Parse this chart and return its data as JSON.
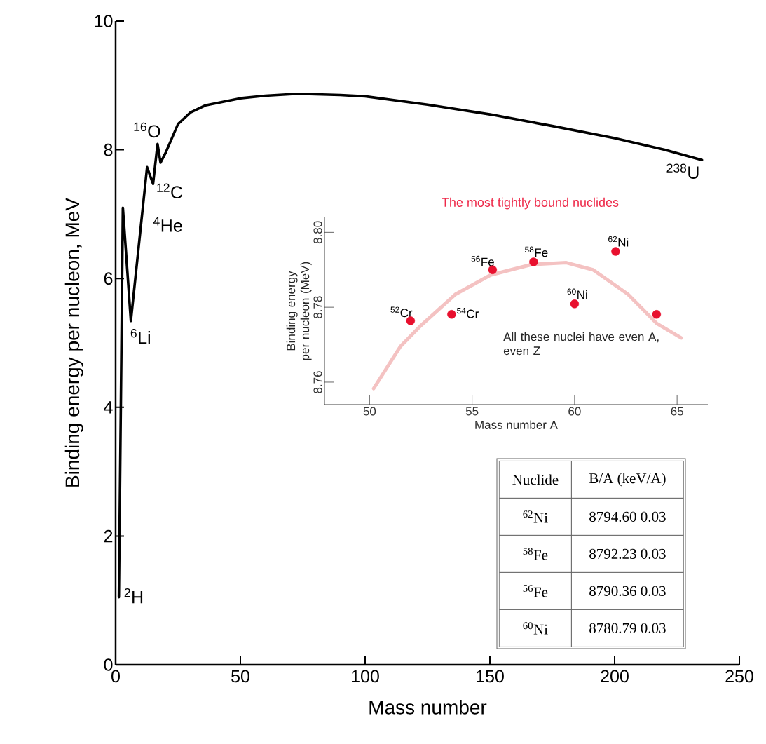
{
  "chart_data": [
    {
      "type": "line",
      "xlabel": "Mass number",
      "ylabel": "Binding energy per nucleon,   MeV",
      "color": "#000000",
      "x": [
        1.3,
        2.9,
        6.1,
        12.6,
        15,
        16.8,
        18,
        20,
        25,
        30,
        36,
        50,
        60,
        73,
        90,
        100,
        125,
        150,
        175,
        200,
        220,
        235
      ],
      "values": [
        1.05,
        7.1,
        5.34,
        7.73,
        7.47,
        8.09,
        7.8,
        7.95,
        8.4,
        8.58,
        8.69,
        8.8,
        8.84,
        8.87,
        8.85,
        8.83,
        8.7,
        8.55,
        8.37,
        8.18,
        8.0,
        7.84
      ],
      "xlim": [
        0,
        250
      ],
      "ylim": [
        0,
        10
      ],
      "xticks": [
        0,
        50,
        100,
        150,
        200,
        250
      ],
      "yticks": [
        0,
        2,
        4,
        6,
        8,
        10
      ],
      "annotations": [
        {
          "text": "$^{2}$H",
          "x": 1.3,
          "y": 1.05
        },
        {
          "text": "$^{4}$He",
          "x": 2.9,
          "y": 7.1
        },
        {
          "text": "$^{6}$Li",
          "x": 6.1,
          "y": 5.34
        },
        {
          "text": "$^{12}$C",
          "x": 12.6,
          "y": 7.73
        },
        {
          "text": "$^{16}$O",
          "x": 16.8,
          "y": 8.09
        },
        {
          "text": "$^{238}$U",
          "x": 235,
          "y": 7.84
        }
      ]
    },
    {
      "type": "scatter",
      "title": "The most tightly bound nuclides",
      "xlabel": "Mass number A",
      "ylabel": "Binding energy per nucleon (MeV)",
      "x": [
        52,
        54,
        56,
        58,
        60,
        62,
        64
      ],
      "series": [
        {
          "type": "scatter",
          "marker": "circle",
          "color": "#e8102e",
          "values": [
            8.7764,
            8.7781,
            8.79,
            8.7921,
            8.7809,
            8.7949,
            8.7781
          ]
        },
        {
          "type": "line",
          "color": "#f4c2c2",
          "x": [
            50.2,
            51.5,
            52.5,
            54.2,
            55.9,
            57.9,
            59.6,
            60.9,
            62.6,
            64,
            65.2
          ],
          "values": [
            8.7583,
            8.7695,
            8.7751,
            8.7835,
            8.7886,
            8.7914,
            8.7919,
            8.79,
            8.7835,
            8.7757,
            8.7718
          ]
        }
      ],
      "xlim": [
        47.8,
        66.5
      ],
      "ylim": [
        8.754,
        8.804
      ],
      "xticks": [
        50,
        55,
        60,
        65
      ],
      "yticks": [
        8.76,
        8.78,
        {
          "value": 8.8,
          "label": "8.80"
        }
      ],
      "annotations": [
        {
          "text": "$^{52}$Cr",
          "x": 52,
          "y": 8.7764
        },
        {
          "text": "$^{54}$Cr",
          "x": 54,
          "y": 8.7781
        },
        {
          "text": "$^{56}$Fe",
          "x": 56,
          "y": 8.79
        },
        {
          "text": "$^{58}$Fe",
          "x": 58,
          "y": 8.7921
        },
        {
          "text": "$^{60}$Ni",
          "x": 60,
          "y": 8.7809
        },
        {
          "text": "$^{62}$Ni",
          "x": 62,
          "y": 8.7949
        },
        "All these nuclei have even A, even Z"
      ]
    },
    {
      "type": "other",
      "annotations": [
        "Nuclide",
        "B/A (keV/A)",
        "$^{62}$Ni",
        "8794.60 0.03",
        "$^{58}$Fe",
        "8792.23 0.03",
        "$^{56}$Fe",
        "8790.36 0.03",
        "$^{60}$Ni",
        "8780.79 0.03"
      ]
    }
  ]
}
